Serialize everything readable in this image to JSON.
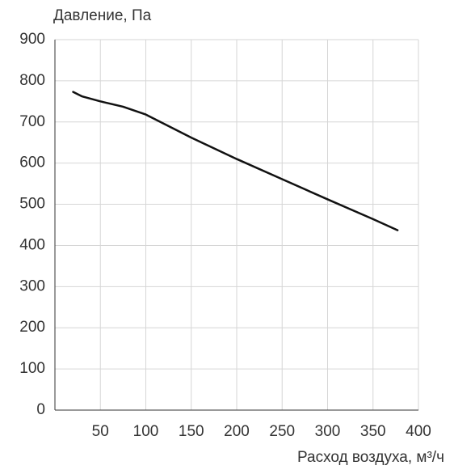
{
  "chart_data": {
    "type": "line",
    "y_label": "Давление, Па",
    "x_label": "Расход воздуха, м³/ч",
    "x": [
      20,
      30,
      50,
      75,
      100,
      125,
      150,
      200,
      250,
      300,
      350,
      377
    ],
    "series": [
      {
        "name": "Давление",
        "color": "#111111",
        "values": [
          773,
          762,
          750,
          737,
          718,
          690,
          662,
          610,
          561,
          512,
          464,
          437
        ]
      }
    ],
    "xlim": [
      0,
      400
    ],
    "xticks": [
      50,
      100,
      150,
      200,
      250,
      300,
      350,
      400
    ],
    "ylim": [
      0,
      900
    ],
    "yticks": [
      0,
      100,
      200,
      300,
      400,
      500,
      600,
      700,
      800,
      900
    ],
    "grid": true
  }
}
